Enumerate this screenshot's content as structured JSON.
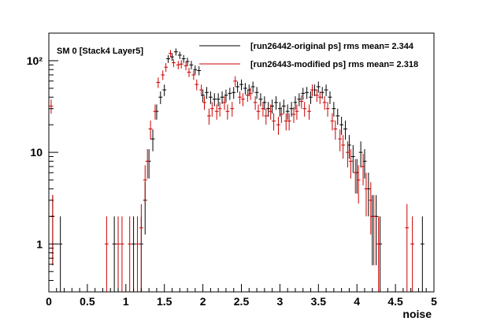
{
  "chart_data": {
    "type": "scatter",
    "title": "SM 0 [Stack4 Layer5]",
    "xlabel": "noise",
    "ylabel": "",
    "xlim": [
      0,
      5
    ],
    "ylim": [
      0.3,
      200
    ],
    "y_scale": "log",
    "grid": false,
    "legend_position": "top-right",
    "x_ticks": [
      "0",
      "0.5",
      "1",
      "1.5",
      "2",
      "2.5",
      "3",
      "3.5",
      "4",
      "4.5",
      "5"
    ],
    "y_ticks": [
      "1",
      "10",
      "10²"
    ],
    "y_ticks_values": [
      1,
      10,
      100
    ],
    "series": [
      {
        "name": "[run26442-original ps] rms mean= 2.344",
        "color": "#000000",
        "points": [
          [
            0.05,
            2
          ],
          [
            0.15,
            1
          ],
          [
            0.85,
            1
          ],
          [
            1.1,
            1
          ],
          [
            1.2,
            1
          ],
          [
            1.25,
            3
          ],
          [
            1.3,
            8
          ],
          [
            1.35,
            14
          ],
          [
            1.4,
            28
          ],
          [
            1.45,
            40
          ],
          [
            1.5,
            48
          ],
          [
            1.55,
            105
          ],
          [
            1.6,
            110
          ],
          [
            1.65,
            125
          ],
          [
            1.7,
            115
          ],
          [
            1.75,
            105
          ],
          [
            1.8,
            98
          ],
          [
            1.85,
            90
          ],
          [
            1.9,
            80
          ],
          [
            1.95,
            78
          ],
          [
            2.0,
            42
          ],
          [
            2.05,
            45
          ],
          [
            2.1,
            40
          ],
          [
            2.15,
            38
          ],
          [
            2.2,
            38
          ],
          [
            2.25,
            40
          ],
          [
            2.3,
            42
          ],
          [
            2.35,
            44
          ],
          [
            2.4,
            45
          ],
          [
            2.45,
            52
          ],
          [
            2.5,
            55
          ],
          [
            2.55,
            50
          ],
          [
            2.6,
            48
          ],
          [
            2.65,
            52
          ],
          [
            2.7,
            45
          ],
          [
            2.75,
            38
          ],
          [
            2.8,
            35
          ],
          [
            2.85,
            30
          ],
          [
            2.9,
            32
          ],
          [
            2.95,
            35
          ],
          [
            3.0,
            30
          ],
          [
            3.05,
            32
          ],
          [
            3.1,
            28
          ],
          [
            3.15,
            30
          ],
          [
            3.2,
            35
          ],
          [
            3.25,
            38
          ],
          [
            3.3,
            44
          ],
          [
            3.35,
            45
          ],
          [
            3.4,
            40
          ],
          [
            3.45,
            48
          ],
          [
            3.5,
            52
          ],
          [
            3.55,
            45
          ],
          [
            3.6,
            48
          ],
          [
            3.65,
            40
          ],
          [
            3.7,
            30
          ],
          [
            3.75,
            25
          ],
          [
            3.8,
            20
          ],
          [
            3.85,
            18
          ],
          [
            3.9,
            12
          ],
          [
            3.95,
            9
          ],
          [
            4.0,
            6
          ],
          [
            4.05,
            10
          ],
          [
            4.1,
            8
          ],
          [
            4.15,
            4
          ],
          [
            4.2,
            2
          ],
          [
            4.25,
            2
          ],
          [
            4.3,
            1
          ],
          [
            4.85,
            1
          ]
        ]
      },
      {
        "name": "[run26443-modified ps] rms mean= 2.318",
        "color": "#cc0000",
        "points": [
          [
            0.03,
            32
          ],
          [
            0.05,
            2
          ],
          [
            0.75,
            1
          ],
          [
            0.9,
            1
          ],
          [
            0.95,
            1
          ],
          [
            1.05,
            1
          ],
          [
            1.15,
            1
          ],
          [
            1.2,
            1.5
          ],
          [
            1.25,
            5
          ],
          [
            1.28,
            8
          ],
          [
            1.32,
            18
          ],
          [
            1.38,
            28
          ],
          [
            1.42,
            58
          ],
          [
            1.48,
            70
          ],
          [
            1.52,
            85
          ],
          [
            1.58,
            120
          ],
          [
            1.62,
            95
          ],
          [
            1.68,
            90
          ],
          [
            1.72,
            92
          ],
          [
            1.78,
            88
          ],
          [
            1.82,
            75
          ],
          [
            1.88,
            70
          ],
          [
            1.92,
            55
          ],
          [
            1.98,
            48
          ],
          [
            2.02,
            35
          ],
          [
            2.08,
            25
          ],
          [
            2.12,
            30
          ],
          [
            2.18,
            28
          ],
          [
            2.22,
            30
          ],
          [
            2.28,
            35
          ],
          [
            2.32,
            28
          ],
          [
            2.38,
            30
          ],
          [
            2.42,
            60
          ],
          [
            2.48,
            40
          ],
          [
            2.52,
            38
          ],
          [
            2.58,
            42
          ],
          [
            2.62,
            44
          ],
          [
            2.68,
            35
          ],
          [
            2.72,
            28
          ],
          [
            2.78,
            30
          ],
          [
            2.82,
            25
          ],
          [
            2.88,
            28
          ],
          [
            2.92,
            22
          ],
          [
            2.98,
            20
          ],
          [
            3.02,
            26
          ],
          [
            3.08,
            22
          ],
          [
            3.12,
            22
          ],
          [
            3.18,
            26
          ],
          [
            3.22,
            28
          ],
          [
            3.28,
            36
          ],
          [
            3.32,
            30
          ],
          [
            3.38,
            28
          ],
          [
            3.42,
            48
          ],
          [
            3.48,
            42
          ],
          [
            3.52,
            40
          ],
          [
            3.58,
            35
          ],
          [
            3.62,
            30
          ],
          [
            3.68,
            22
          ],
          [
            3.72,
            18
          ],
          [
            3.78,
            14
          ],
          [
            3.82,
            12
          ],
          [
            3.88,
            10
          ],
          [
            3.92,
            8
          ],
          [
            3.98,
            6
          ],
          [
            4.02,
            5
          ],
          [
            4.08,
            7
          ],
          [
            4.12,
            4
          ],
          [
            4.18,
            3
          ],
          [
            4.22,
            2
          ],
          [
            4.28,
            1
          ],
          [
            4.65,
            1.5
          ],
          [
            4.72,
            1
          ]
        ]
      }
    ]
  }
}
